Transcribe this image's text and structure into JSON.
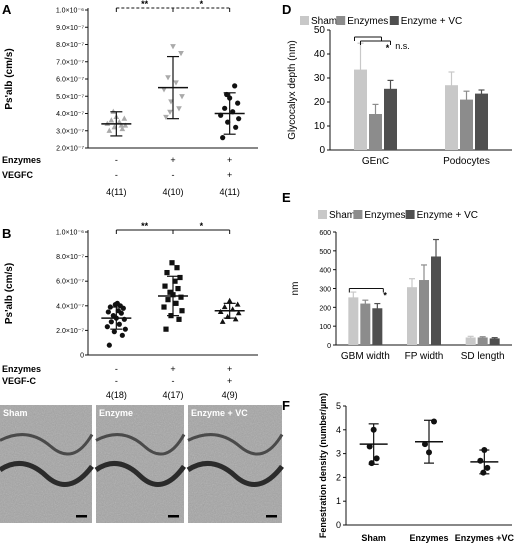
{
  "panels": {
    "A": {
      "letter": "A",
      "ylabel": "Ps'alb (cm/s)",
      "yticks": [
        {
          "v": 2e-07,
          "t": "2.0×10⁻⁷"
        },
        {
          "v": 3e-07,
          "t": "3.0×10⁻⁷"
        },
        {
          "v": 4e-07,
          "t": "4.0×10⁻⁷"
        },
        {
          "v": 5e-07,
          "t": "5.0×10⁻⁷"
        },
        {
          "v": 6e-07,
          "t": "6.0×10⁻⁷"
        },
        {
          "v": 7e-07,
          "t": "7.0×10⁻⁷"
        },
        {
          "v": 8e-07,
          "t": "8.0×10⁻⁷"
        },
        {
          "v": 9e-07,
          "t": "9.0×10⁻⁷"
        },
        {
          "v": 1e-06,
          "t": "1.0×10⁻⁶"
        }
      ],
      "ylim": [
        2e-07,
        1e-06
      ],
      "row_labels": [
        "Enzymes",
        "VEGFC"
      ],
      "columns": [
        {
          "treat": [
            "-",
            "-"
          ],
          "n": "4(11)",
          "color": "#aaaaaa",
          "marker": "triangle-up",
          "mean": 3.4e-07,
          "sd": 7e-08,
          "points": [
            3e-07,
            3.1e-07,
            3.2e-07,
            3.3e-07,
            3.4e-07,
            3.5e-07,
            3.6e-07,
            3.7e-07,
            3.8e-07,
            4.1e-07,
            3.3e-07
          ]
        },
        {
          "treat": [
            "+",
            "-"
          ],
          "n": "4(10)",
          "color": "#aaaaaa",
          "marker": "triangle-down",
          "mean": 5.5e-07,
          "sd": 1.8e-07,
          "points": [
            3.8e-07,
            4.3e-07,
            4.7e-07,
            5e-07,
            5.4e-07,
            5.8e-07,
            6.1e-07,
            7.5e-07,
            7.9e-07,
            4.1e-07
          ]
        },
        {
          "treat": [
            "+",
            "+"
          ],
          "n": "4(11)",
          "color": "#111111",
          "marker": "circle",
          "mean": 4e-07,
          "sd": 1.2e-07,
          "points": [
            2.6e-07,
            3.2e-07,
            3.5e-07,
            3.7e-07,
            3.9e-07,
            4.1e-07,
            4.3e-07,
            4.6e-07,
            4.9e-07,
            5.1e-07,
            5.6e-07
          ]
        }
      ],
      "sig": [
        {
          "from": 0,
          "to": 1,
          "text": "**"
        },
        {
          "from": 1,
          "to": 2,
          "text": "*"
        }
      ]
    },
    "B": {
      "letter": "B",
      "ylabel": "Ps'alb (cm/s)",
      "yticks": [
        {
          "v": 0,
          "t": "0"
        },
        {
          "v": 2e-07,
          "t": "2.0×10⁻⁷"
        },
        {
          "v": 4e-07,
          "t": "4.0×10⁻⁷"
        },
        {
          "v": 6e-07,
          "t": "6.0×10⁻⁷"
        },
        {
          "v": 8e-07,
          "t": "8.0×10⁻⁷"
        },
        {
          "v": 1e-06,
          "t": "1.0×10⁻⁶"
        }
      ],
      "ylim": [
        0,
        1e-06
      ],
      "row_labels": [
        "Enzymes",
        "VEGF-C"
      ],
      "columns": [
        {
          "treat": [
            "-",
            "-"
          ],
          "n": "4(18)",
          "color": "#111111",
          "marker": "circle",
          "mean": 3e-07,
          "sd": 9e-08,
          "points": [
            8e-08,
            1.6e-07,
            1.9e-07,
            2.1e-07,
            2.3e-07,
            2.5e-07,
            2.7e-07,
            2.9e-07,
            3e-07,
            3.2e-07,
            3.4e-07,
            3.5e-07,
            3.6e-07,
            3.8e-07,
            3.9e-07,
            4e-07,
            4.1e-07,
            4.2e-07
          ]
        },
        {
          "treat": [
            "+",
            "-"
          ],
          "n": "4(17)",
          "color": "#111111",
          "marker": "square",
          "mean": 4.8e-07,
          "sd": 1.6e-07,
          "points": [
            2.1e-07,
            2.9e-07,
            3.2e-07,
            3.6e-07,
            3.9e-07,
            4.2e-07,
            4.5e-07,
            4.7e-07,
            4.9e-07,
            5.1e-07,
            5.4e-07,
            5.6e-07,
            6e-07,
            6.3e-07,
            6.7e-07,
            7.1e-07,
            7.5e-07
          ]
        },
        {
          "treat": [
            "+",
            "+"
          ],
          "n": "4(9)",
          "color": "#111111",
          "marker": "triangle-up",
          "mean": 3.6e-07,
          "sd": 6e-08,
          "points": [
            2.7e-07,
            2.9e-07,
            3.1e-07,
            3.4e-07,
            3.5e-07,
            3.7e-07,
            3.9e-07,
            4.1e-07,
            4.4e-07
          ]
        }
      ],
      "sig": [
        {
          "from": 0,
          "to": 1,
          "text": "**"
        },
        {
          "from": 1,
          "to": 2,
          "text": "*"
        }
      ]
    },
    "C": {
      "letter": "C",
      "images": [
        {
          "label": "Sham"
        },
        {
          "label": "Enzyme"
        },
        {
          "label": "Enzyme + VC"
        }
      ]
    },
    "D": {
      "letter": "D",
      "ylabel": "Glycocalyx depth (nm)",
      "ylim": [
        0,
        50
      ],
      "yticks": [
        0,
        10,
        20,
        30,
        40,
        50
      ],
      "legend": [
        "Sham",
        "Enzymes",
        "Enzyme + VC"
      ],
      "colors": [
        "#c8c8c8",
        "#8c8c8c",
        "#4f4f4f"
      ],
      "categories": [
        "GEnC",
        "Podocytes"
      ],
      "series": [
        {
          "name": "Sham",
          "values": [
            33.5,
            27
          ],
          "err": [
            11,
            5.5
          ]
        },
        {
          "name": "Enzymes",
          "values": [
            15,
            21
          ],
          "err": [
            4,
            3.5
          ]
        },
        {
          "name": "Enzyme + VC",
          "values": [
            25.5,
            23.5
          ],
          "err": [
            3.5,
            1.5
          ]
        }
      ],
      "sig": [
        {
          "text": "*"
        },
        {
          "text": "n.s."
        }
      ]
    },
    "E": {
      "letter": "E",
      "ylabel": "nm",
      "ylim": [
        0,
        600
      ],
      "yticks": [
        0,
        100,
        200,
        300,
        400,
        500,
        600
      ],
      "legend": [
        "Sham",
        "Enzymes",
        "Enzyme + VC"
      ],
      "colors": [
        "#c8c8c8",
        "#8c8c8c",
        "#4f4f4f"
      ],
      "categories": [
        "GBM width",
        "FP width",
        "SD length"
      ],
      "series": [
        {
          "name": "Sham",
          "values": [
            253,
            307,
            40
          ],
          "err": [
            28,
            45,
            6
          ]
        },
        {
          "name": "Enzymes",
          "values": [
            220,
            345,
            40
          ],
          "err": [
            18,
            80,
            4
          ]
        },
        {
          "name": "Enzyme + VC",
          "values": [
            195,
            470,
            35
          ],
          "err": [
            25,
            90,
            4
          ]
        }
      ],
      "sig": [
        {
          "text": "*"
        }
      ]
    },
    "F": {
      "letter": "F",
      "ylabel": "Fenestration density (number/µm)",
      "ylim": [
        0,
        5
      ],
      "yticks": [
        0,
        1,
        2,
        3,
        4,
        5
      ],
      "columns": [
        {
          "name": "Sham",
          "mean": 3.4,
          "sd": 0.85,
          "points": [
            4.0,
            3.3,
            2.8,
            2.6
          ]
        },
        {
          "name": "Enzymes",
          "mean": 3.5,
          "sd": 0.9,
          "points": [
            4.35,
            3.05,
            3.4
          ]
        },
        {
          "name": "Enzymes +VC",
          "mean": 2.65,
          "sd": 0.5,
          "points": [
            3.15,
            2.7,
            2.4,
            2.2
          ]
        }
      ]
    }
  },
  "chart_data": [
    {
      "type": "scatter",
      "panel": "A",
      "title": "",
      "ylabel": "Ps'alb (cm/s)",
      "categories": [
        "-/-",
        "+/-",
        "+/+"
      ],
      "means": [
        3.4e-07,
        5.5e-07,
        4e-07
      ],
      "ylim": [
        2e-07,
        1e-06
      ]
    },
    {
      "type": "scatter",
      "panel": "B",
      "title": "",
      "ylabel": "Ps'alb (cm/s)",
      "categories": [
        "-/-",
        "+/-",
        "+/+"
      ],
      "means": [
        3e-07,
        4.8e-07,
        3.6e-07
      ],
      "ylim": [
        0,
        1e-06
      ]
    },
    {
      "type": "bar",
      "panel": "D",
      "title": "",
      "ylabel": "Glycocalyx depth (nm)",
      "categories": [
        "GEnC",
        "Podocytes"
      ],
      "series": [
        {
          "name": "Sham",
          "values": [
            33.5,
            27
          ]
        },
        {
          "name": "Enzymes",
          "values": [
            15,
            21
          ]
        },
        {
          "name": "Enzyme + VC",
          "values": [
            25.5,
            23.5
          ]
        }
      ],
      "ylim": [
        0,
        50
      ]
    },
    {
      "type": "bar",
      "panel": "E",
      "title": "",
      "ylabel": "nm",
      "categories": [
        "GBM width",
        "FP width",
        "SD length"
      ],
      "series": [
        {
          "name": "Sham",
          "values": [
            253,
            307,
            40
          ]
        },
        {
          "name": "Enzymes",
          "values": [
            220,
            345,
            40
          ]
        },
        {
          "name": "Enzyme + VC",
          "values": [
            195,
            470,
            35
          ]
        }
      ],
      "ylim": [
        0,
        600
      ]
    },
    {
      "type": "scatter",
      "panel": "F",
      "title": "",
      "ylabel": "Fenestration density (number/µm)",
      "categories": [
        "Sham",
        "Enzymes",
        "Enzymes +VC"
      ],
      "means": [
        3.4,
        3.5,
        2.65
      ],
      "ylim": [
        0,
        5
      ]
    }
  ]
}
